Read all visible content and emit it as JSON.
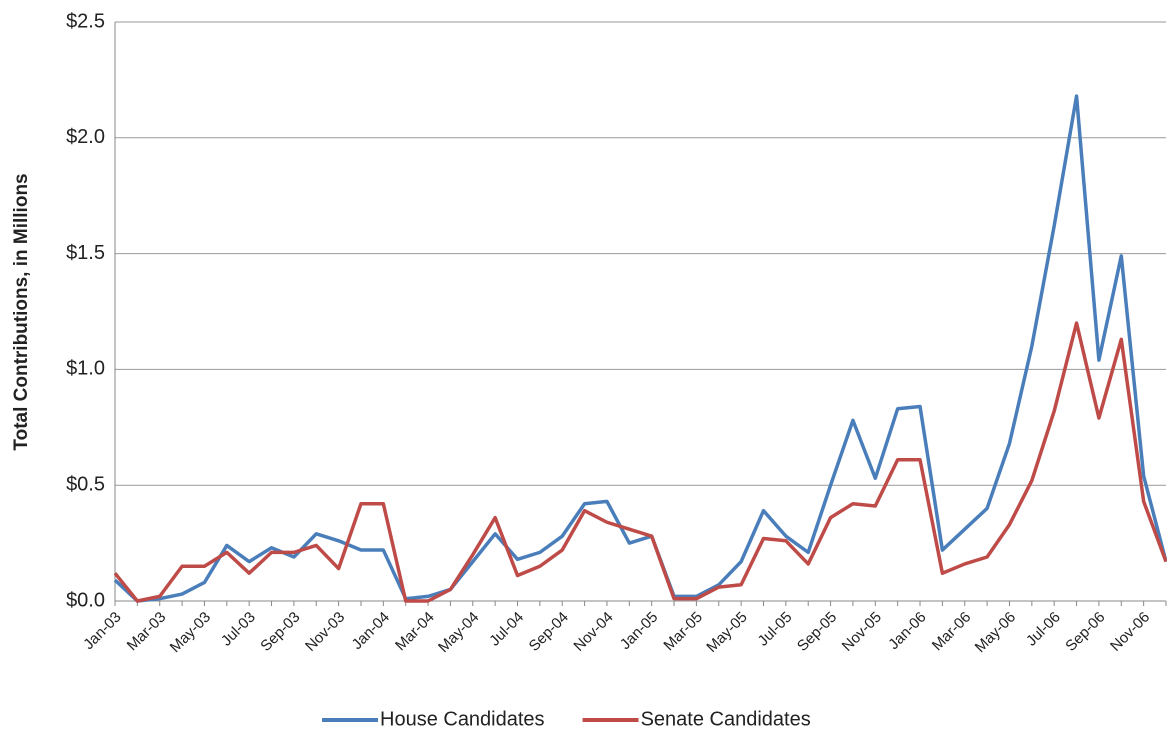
{
  "chart_data": {
    "type": "line",
    "y_label": "Total Contributions, in Millions",
    "categories": [
      "Jan-03",
      null,
      "Mar-03",
      null,
      "May-03",
      null,
      "Jul-03",
      null,
      "Sep-03",
      null,
      "Nov-03",
      null,
      "Jan-04",
      null,
      "Mar-04",
      null,
      "May-04",
      null,
      "Jul-04",
      null,
      "Sep-04",
      null,
      "Nov-04",
      null,
      "Jan-05",
      null,
      "Mar-05",
      null,
      "May-05",
      null,
      "Jul-05",
      null,
      "Sep-05",
      null,
      "Nov-05",
      null,
      "Jan-06",
      null,
      "Mar-06",
      null,
      "May-06",
      null,
      "Jul-06",
      null,
      "Sep-06",
      null,
      "Nov-06",
      null
    ],
    "series": [
      {
        "name": "House Candidates",
        "color": "#4a7ebb",
        "values": [
          0.09,
          0.0,
          0.01,
          0.03,
          0.08,
          0.24,
          0.17,
          0.23,
          0.19,
          0.29,
          0.26,
          0.22,
          0.22,
          0.01,
          0.02,
          0.05,
          0.17,
          0.29,
          0.18,
          0.21,
          0.28,
          0.42,
          0.43,
          0.25,
          0.28,
          0.02,
          0.02,
          0.07,
          0.17,
          0.39,
          0.28,
          0.21,
          0.5,
          0.78,
          0.53,
          0.83,
          0.84,
          0.22,
          0.31,
          0.4,
          0.68,
          1.1,
          1.62,
          2.18,
          1.04,
          1.49,
          0.54,
          0.17
        ]
      },
      {
        "name": "Senate Candidates",
        "color": "#be4b48",
        "values": [
          0.12,
          0.0,
          0.02,
          0.15,
          0.15,
          0.21,
          0.12,
          0.21,
          0.21,
          0.24,
          0.14,
          0.42,
          0.42,
          0.0,
          0.0,
          0.05,
          0.2,
          0.36,
          0.11,
          0.15,
          0.22,
          0.39,
          0.34,
          0.31,
          0.28,
          0.01,
          0.01,
          0.06,
          0.07,
          0.27,
          0.26,
          0.16,
          0.36,
          0.42,
          0.41,
          0.61,
          0.61,
          0.12,
          0.16,
          0.19,
          0.33,
          0.52,
          0.82,
          1.2,
          0.79,
          1.13,
          0.43,
          0.17
        ]
      }
    ],
    "ylim": [
      0,
      2.5
    ],
    "yticks": [
      {
        "value": 0,
        "label": "$0.0"
      },
      {
        "value": 0.5,
        "label": "$0.5"
      },
      {
        "value": 1,
        "label": "$1.0"
      },
      {
        "value": 1.5,
        "label": "$1.5"
      },
      {
        "value": 2,
        "label": "$2.0"
      },
      {
        "value": 2.5,
        "label": "$2.5"
      }
    ],
    "grid": true,
    "legend": "bottom"
  }
}
